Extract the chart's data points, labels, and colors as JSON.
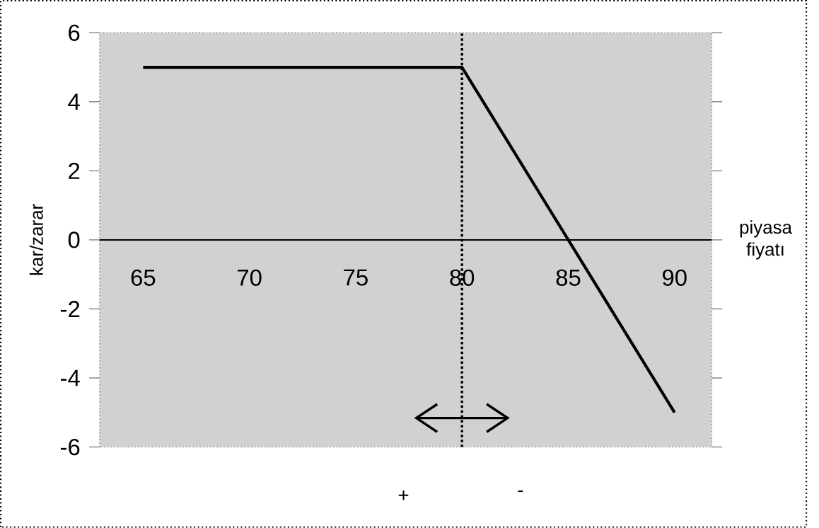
{
  "chart_data": {
    "type": "line",
    "categories": [
      "65",
      "70",
      "75",
      "80",
      "85",
      "90"
    ],
    "values": [
      5,
      5,
      5,
      5,
      0,
      -5
    ],
    "color": "#000000",
    "xlabel": "piyasa fiyatı",
    "ylabel": "kar/zarar",
    "ylim": [
      -6,
      6
    ],
    "yticks": [
      -6,
      -4,
      -2,
      0,
      2,
      4,
      6
    ],
    "grid": false,
    "marker": "none",
    "line_style": "solid",
    "ref_lines": [
      {
        "axis": "x",
        "value": "80",
        "line_style": "dotted",
        "color": "#000000"
      }
    ],
    "annotations": [
      "+",
      "-"
    ]
  }
}
